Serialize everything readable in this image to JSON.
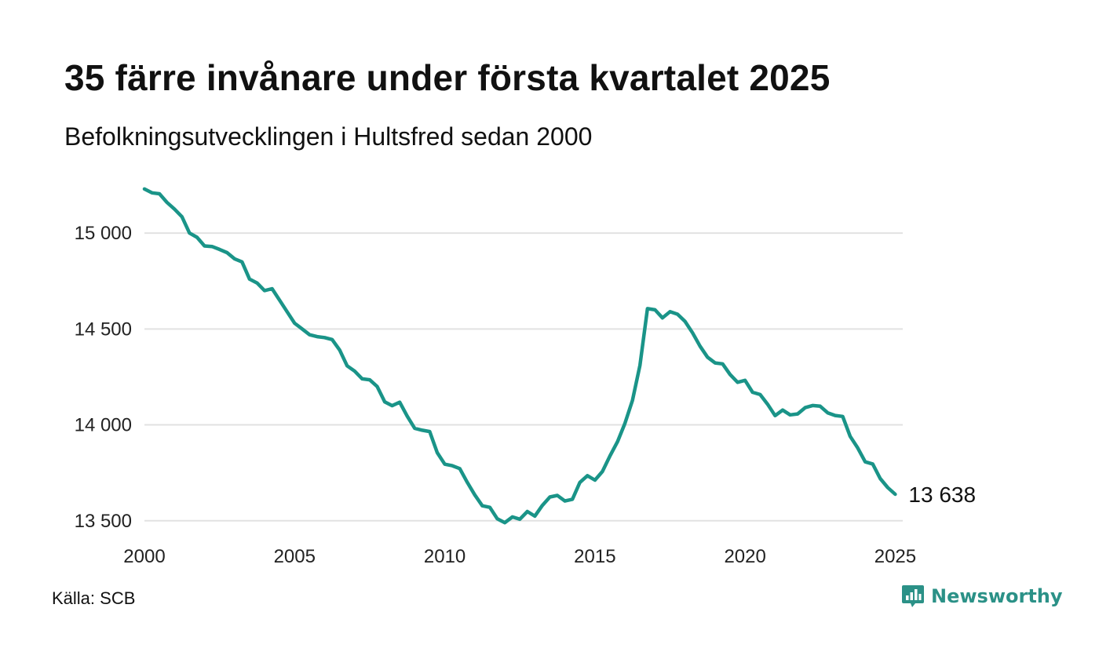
{
  "header": {
    "title": "35 färre invånare under första kvartalet 2025",
    "subtitle": "Befolkningsutvecklingen i Hultsfred sedan 2000"
  },
  "footer": {
    "source": "Källa: SCB",
    "logo_text": "Newsworthy",
    "logo_icon": "newsworthy-chat-chart-icon"
  },
  "colors": {
    "line": "#1a9488",
    "grid": "#e2e2e2",
    "logo": "#2b9187"
  },
  "chart_data": {
    "type": "line",
    "xlim": [
      2000,
      2025.25
    ],
    "ylim": [
      13450,
      15250
    ],
    "grid": true,
    "grid_axis": "y",
    "y_ticks": [
      13500,
      14000,
      14500,
      15000
    ],
    "y_tick_labels": [
      "13 500",
      "14 000",
      "14 500",
      "15 000"
    ],
    "x_ticks": [
      2000,
      2005,
      2010,
      2015,
      2020,
      2025
    ],
    "x_tick_labels": [
      "2000",
      "2005",
      "2010",
      "2015",
      "2020",
      "2025"
    ],
    "end_label": "13 638",
    "series": [
      {
        "x": [
          2000.0,
          2000.25,
          2000.5,
          2000.75,
          2001.0,
          2001.25,
          2001.5,
          2001.75,
          2002.0,
          2002.25,
          2002.5,
          2002.75,
          2003.0,
          2003.25,
          2003.5,
          2003.75,
          2004.0,
          2004.25,
          2004.5,
          2004.75,
          2005.0,
          2005.25,
          2005.5,
          2005.75,
          2006.0,
          2006.25,
          2006.5,
          2006.75,
          2007.0,
          2007.25,
          2007.5,
          2007.75,
          2008.0,
          2008.25,
          2008.5,
          2008.75,
          2009.0,
          2009.25,
          2009.5,
          2009.75,
          2010.0,
          2010.25,
          2010.5,
          2010.75,
          2011.0,
          2011.25,
          2011.5,
          2011.75,
          2012.0,
          2012.25,
          2012.5,
          2012.75,
          2013.0,
          2013.25,
          2013.5,
          2013.75,
          2014.0,
          2014.25,
          2014.5,
          2014.75,
          2015.0,
          2015.25,
          2015.5,
          2015.75,
          2016.0,
          2016.25,
          2016.5,
          2016.75,
          2017.0,
          2017.25,
          2017.5,
          2017.75,
          2018.0,
          2018.25,
          2018.5,
          2018.75,
          2019.0,
          2019.25,
          2019.5,
          2019.75,
          2020.0,
          2020.25,
          2020.5,
          2020.75,
          2021.0,
          2021.25,
          2021.5,
          2021.75,
          2022.0,
          2022.25,
          2022.5,
          2022.75,
          2023.0,
          2023.25,
          2023.5,
          2023.75,
          2024.0,
          2024.25,
          2024.5,
          2024.75,
          2025.0
        ],
        "values": [
          15230,
          15210,
          15205,
          15160,
          15125,
          15085,
          15000,
          14978,
          14933,
          14930,
          14915,
          14898,
          14866,
          14850,
          14760,
          14740,
          14700,
          14710,
          14650,
          14590,
          14530,
          14500,
          14470,
          14460,
          14455,
          14445,
          14390,
          14308,
          14280,
          14240,
          14235,
          14200,
          14120,
          14100,
          14118,
          14045,
          13982,
          13972,
          13965,
          13855,
          13795,
          13787,
          13772,
          13700,
          13635,
          13578,
          13570,
          13510,
          13490,
          13520,
          13508,
          13548,
          13524,
          13580,
          13624,
          13632,
          13603,
          13612,
          13700,
          13735,
          13712,
          13757,
          13838,
          13912,
          14008,
          14128,
          14310,
          14606,
          14600,
          14558,
          14590,
          14577,
          14540,
          14480,
          14410,
          14353,
          14323,
          14318,
          14263,
          14222,
          14232,
          14170,
          14158,
          14108,
          14048,
          14077,
          14052,
          14057,
          14090,
          14101,
          14097,
          14063,
          14049,
          14044,
          13940,
          13880,
          13807,
          13796,
          13720,
          13673,
          13638
        ]
      }
    ]
  }
}
